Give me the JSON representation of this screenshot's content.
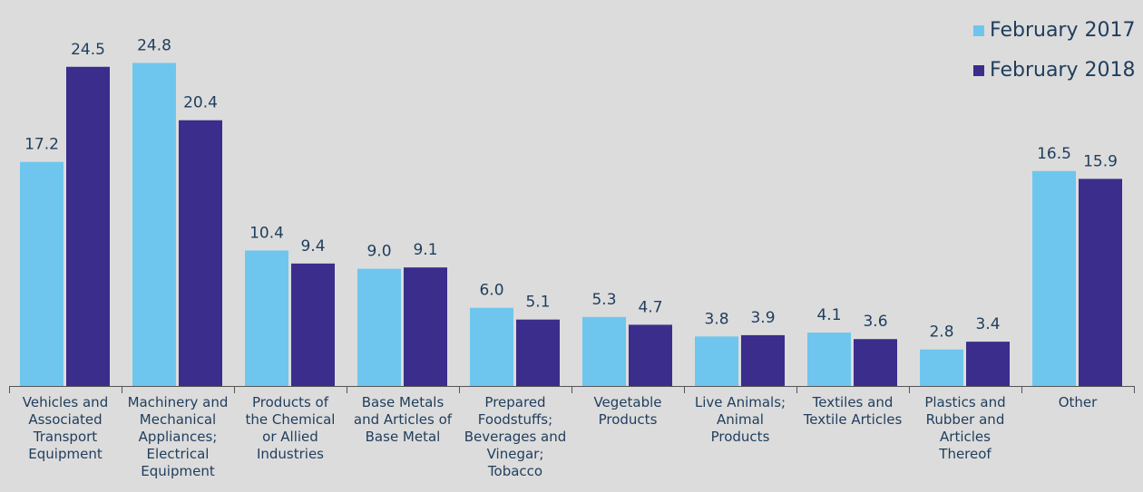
{
  "chart_data": {
    "type": "bar",
    "categories": [
      "Vehicles and Associated Transport Equipment",
      "Machinery and Mechanical Appliances; Electrical Equipment",
      "Products of the Chemical or Allied Industries",
      "Base Metals and Articles of Base Metal",
      "Prepared Foodstuffs; Beverages and Vinegar; Tobacco",
      "Vegetable Products",
      "Live Animals; Animal Products",
      "Textiles and Textile Articles",
      "Plastics and Rubber and Articles Thereof",
      "Other"
    ],
    "category_lines": [
      [
        "Vehicles and",
        "Associated",
        "Transport",
        "Equipment"
      ],
      [
        "Machinery and",
        "Mechanical",
        "Appliances;",
        "Electrical",
        "Equipment"
      ],
      [
        "Products of",
        "the Chemical",
        "or Allied",
        "Industries"
      ],
      [
        "Base Metals",
        "and Articles of",
        "Base Metal"
      ],
      [
        "Prepared",
        "Foodstuffs;",
        "Beverages and",
        "Vinegar;",
        "Tobacco"
      ],
      [
        "Vegetable",
        "Products"
      ],
      [
        "Live Animals;",
        "Animal",
        "Products"
      ],
      [
        "Textiles and",
        "Textile Articles"
      ],
      [
        "Plastics and",
        "Rubber and",
        "Articles",
        "Thereof"
      ],
      [
        "Other"
      ]
    ],
    "series": [
      {
        "name": "February 2017",
        "color": "#6ec6ee",
        "values": [
          17.2,
          24.8,
          10.4,
          9.0,
          6.0,
          5.3,
          3.8,
          4.1,
          2.8,
          16.5
        ],
        "labels": [
          "17.2",
          "24.8",
          "10.4",
          "9.0",
          "6.0",
          "5.3",
          "3.8",
          "4.1",
          "2.8",
          "16.5"
        ]
      },
      {
        "name": "February 2018",
        "color": "#3a2d8c",
        "values": [
          24.5,
          20.4,
          9.4,
          9.1,
          5.1,
          4.7,
          3.9,
          3.6,
          3.4,
          15.9
        ],
        "labels": [
          "24.5",
          "20.4",
          "9.4",
          "9.1",
          "5.1",
          "4.7",
          "3.9",
          "3.6",
          "3.4",
          "15.9"
        ]
      }
    ],
    "ylim": [
      0,
      26.5
    ],
    "grid": false,
    "legend_position": "top-right",
    "axis_color": "#555555",
    "text_color": "#1f3d5c"
  }
}
